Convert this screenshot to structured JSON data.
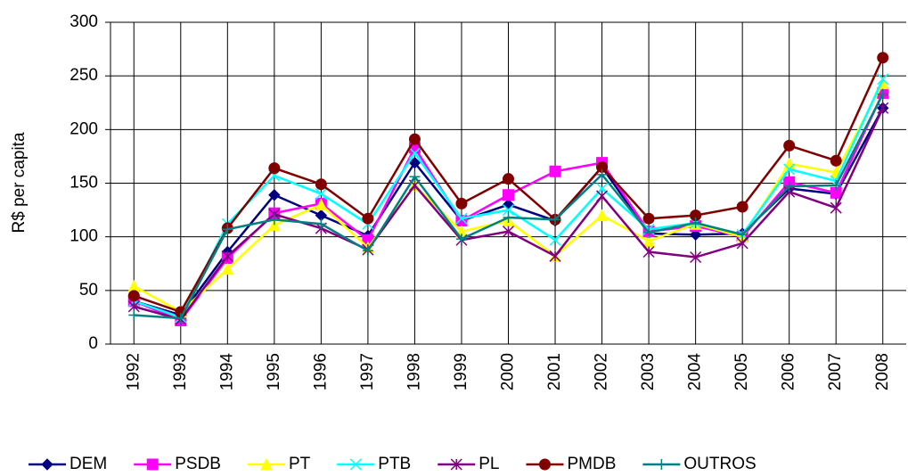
{
  "chart_data": {
    "type": "line",
    "y_label": "R$ per capita",
    "categories": [
      "1992",
      "1993",
      "1994",
      "1995",
      "1996",
      "1997",
      "1998",
      "1999",
      "2000",
      "2001",
      "2002",
      "2003",
      "2004",
      "2005",
      "2006",
      "2007",
      "2008"
    ],
    "ylim": [
      0,
      300
    ],
    "yticks": [
      0,
      50,
      100,
      150,
      200,
      250,
      300
    ],
    "grid": true,
    "series": [
      {
        "name": "DEM",
        "color": "#000080",
        "marker": "diamond",
        "values": [
          40,
          27,
          86,
          139,
          120,
          101,
          169,
          115,
          130,
          115,
          165,
          103,
          102,
          103,
          145,
          140,
          220
        ]
      },
      {
        "name": "PSDB",
        "color": "#ff00ff",
        "marker": "square",
        "values": [
          40,
          22,
          80,
          122,
          131,
          97,
          183,
          115,
          139,
          161,
          169,
          105,
          110,
          100,
          151,
          141,
          234
        ]
      },
      {
        "name": "PT",
        "color": "#ffff00",
        "marker": "triangle",
        "values": [
          54,
          30,
          70,
          111,
          130,
          90,
          148,
          105,
          115,
          82,
          120,
          96,
          112,
          100,
          168,
          160,
          243
        ]
      },
      {
        "name": "PTB",
        "color": "#00ffff",
        "marker": "x",
        "values": [
          40,
          25,
          112,
          157,
          140,
          112,
          178,
          117,
          125,
          97,
          145,
          107,
          113,
          102,
          163,
          152,
          247
        ]
      },
      {
        "name": "PL",
        "color": "#800080",
        "marker": "star",
        "values": [
          35,
          23,
          82,
          121,
          108,
          88,
          148,
          97,
          105,
          82,
          138,
          86,
          81,
          94,
          142,
          127,
          220
        ]
      },
      {
        "name": "PMDB",
        "color": "#800000",
        "marker": "circle",
        "values": [
          45,
          30,
          108,
          164,
          149,
          117,
          191,
          131,
          154,
          116,
          165,
          117,
          120,
          128,
          185,
          171,
          267
        ]
      },
      {
        "name": "OUTROS",
        "color": "#008080",
        "marker": "plus",
        "values": [
          27,
          24,
          107,
          116,
          112,
          87,
          156,
          98,
          118,
          116,
          158,
          104,
          113,
          102,
          147,
          148,
          233
        ]
      }
    ]
  }
}
